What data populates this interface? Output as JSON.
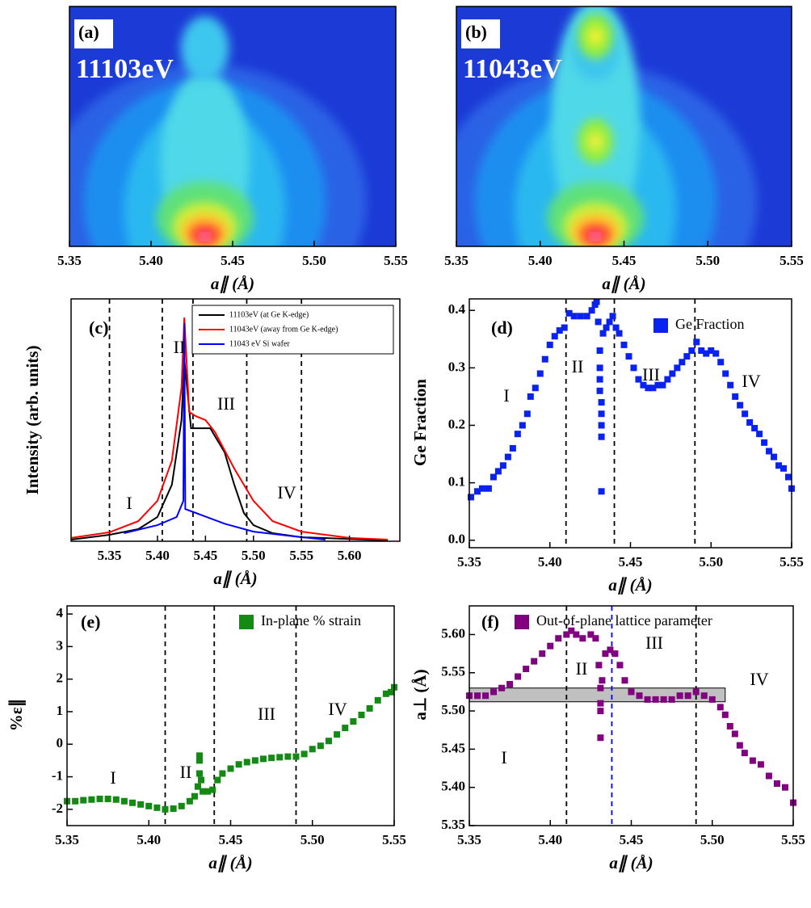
{
  "chart_data": [
    {
      "type": "image",
      "panel_label": "(a)",
      "annotation": "11103eV",
      "xlabel": "a∥ (Å)",
      "xlim": [
        5.35,
        5.55
      ],
      "xticks": [
        5.35,
        {
          "value": 5.4,
          "label": "5.40"
        },
        5.45,
        {
          "value": 5.5,
          "label": "5.50"
        },
        5.55
      ]
    },
    {
      "type": "image",
      "panel_label": "(b)",
      "annotation": "11043eV",
      "xlabel": "a∥ (Å)",
      "xlim": [
        5.35,
        5.55
      ],
      "xticks": [
        5.35,
        {
          "value": 5.4,
          "label": "5.40"
        },
        5.45,
        {
          "value": 5.5,
          "label": "5.50"
        },
        5.55
      ]
    },
    {
      "type": "line",
      "panel_label": "(c)",
      "xlabel": "a∥ (Å)",
      "ylabel": "Intensity (arb. units)",
      "log_y": true,
      "xlim": [
        5.31,
        5.6525
      ],
      "xticks": [
        5.35,
        {
          "value": 5.4,
          "label": "5.40"
        },
        5.45,
        {
          "value": 5.5,
          "label": "5.50"
        },
        5.55,
        {
          "value": 5.6,
          "label": "5.60"
        }
      ],
      "ylim": [
        1,
        100000
      ],
      "vlines": [
        {
          "x": 5.35,
          "color": "#000000"
        },
        {
          "x": 5.405,
          "color": "#000000"
        },
        {
          "x": 5.437,
          "color": "#000000"
        },
        {
          "x": 5.493,
          "color": "#000000"
        },
        {
          "x": 5.55,
          "color": "#000000"
        }
      ],
      "region_labels": [
        "I",
        "II",
        "III",
        "IV"
      ],
      "series": [
        {
          "name": "11103eV (at Ge K-edge)",
          "color": "#000000",
          "x": [
            5.31,
            5.35,
            5.38,
            5.4,
            5.415,
            5.425,
            5.428,
            5.435,
            5.455,
            5.47,
            5.48,
            5.49,
            5.5,
            5.52,
            5.55,
            5.64
          ],
          "values": [
            1.08,
            1.36,
            1.78,
            3.16,
            14.7,
            316,
            5623,
            215,
            215,
            68,
            14.7,
            3.83,
            2.15,
            1.47,
            1.21,
            1.04
          ]
        },
        {
          "name": "11043eV (away from Ge K-edge)",
          "color": "#ff0000",
          "x": [
            5.31,
            5.35,
            5.38,
            5.4,
            5.415,
            5.425,
            5.428,
            5.433,
            5.44,
            5.45,
            5.46,
            5.48,
            5.5,
            5.52,
            5.55,
            5.6,
            5.64
          ],
          "values": [
            1.17,
            1.53,
            2.6,
            6.8,
            46,
            1468,
            41000,
            464,
            380,
            316,
            178,
            31.6,
            6.8,
            2.6,
            1.58,
            1.17,
            1.08
          ]
        },
        {
          "name": "11043 eV Si wafer",
          "color": "#0000ff",
          "x": [
            5.365,
            5.4,
            5.42,
            5.427,
            5.428,
            5.429,
            5.44,
            5.47,
            5.5,
            5.55,
            5.575
          ],
          "values": [
            1.47,
            2.15,
            3.16,
            6.8,
            31600,
            4.6,
            3.83,
            2.3,
            1.58,
            1.21,
            1.08
          ]
        }
      ]
    },
    {
      "type": "scatter",
      "panel_label": "(d)",
      "xlabel": "a∥ (Å)",
      "ylabel": "Ge Fraction",
      "xlim": [
        5.35,
        5.55
      ],
      "xticks": [
        5.35,
        {
          "value": 5.4,
          "label": "5.40"
        },
        5.45,
        {
          "value": 5.5,
          "label": "5.50"
        },
        5.55
      ],
      "ylim": [
        -0.013,
        0.42
      ],
      "yticks": [
        {
          "value": 0,
          "label": "0.0"
        },
        0.1,
        0.2,
        0.3,
        0.4
      ],
      "vlines": [
        {
          "x": 5.41,
          "color": "#000000"
        },
        {
          "x": 5.44,
          "color": "#000000"
        },
        {
          "x": 5.49,
          "color": "#000000"
        }
      ],
      "region_labels": [
        "I",
        "II",
        "III",
        "IV"
      ],
      "series": [
        {
          "name": "Ge Fraction",
          "color": "#0a22f0",
          "x": [
            5.351,
            5.355,
            5.358,
            5.362,
            5.365,
            5.368,
            5.371,
            5.374,
            5.377,
            5.38,
            5.383,
            5.386,
            5.388,
            5.391,
            5.394,
            5.397,
            5.4,
            5.403,
            5.406,
            5.409,
            5.412,
            5.415,
            5.419,
            5.423,
            5.426,
            5.428,
            5.429,
            5.43,
            5.431,
            5.431,
            5.431,
            5.431,
            5.432,
            5.432,
            5.432,
            5.432,
            5.432,
            5.433,
            5.435,
            5.437,
            5.439,
            5.441,
            5.443,
            5.446,
            5.449,
            5.452,
            5.455,
            5.458,
            5.461,
            5.464,
            5.467,
            5.47,
            5.473,
            5.476,
            5.479,
            5.482,
            5.485,
            5.488,
            5.491,
            5.494,
            5.497,
            5.5,
            5.503,
            5.506,
            5.509,
            5.512,
            5.515,
            5.518,
            5.521,
            5.524,
            5.527,
            5.53,
            5.533,
            5.536,
            5.539,
            5.542,
            5.545,
            5.548,
            5.55
          ],
          "values": [
            0.075,
            0.085,
            0.09,
            0.09,
            0.11,
            0.12,
            0.13,
            0.145,
            0.16,
            0.185,
            0.2,
            0.22,
            0.25,
            0.265,
            0.29,
            0.315,
            0.34,
            0.355,
            0.365,
            0.37,
            0.395,
            0.39,
            0.39,
            0.39,
            0.4,
            0.41,
            0.415,
            0.38,
            0.33,
            0.3,
            0.28,
            0.26,
            0.24,
            0.22,
            0.2,
            0.18,
            0.085,
            0.36,
            0.37,
            0.38,
            0.39,
            0.37,
            0.36,
            0.34,
            0.32,
            0.3,
            0.28,
            0.27,
            0.265,
            0.265,
            0.27,
            0.27,
            0.28,
            0.29,
            0.3,
            0.31,
            0.32,
            0.33,
            0.345,
            0.33,
            0.325,
            0.33,
            0.325,
            0.31,
            0.29,
            0.27,
            0.25,
            0.235,
            0.22,
            0.205,
            0.195,
            0.185,
            0.17,
            0.155,
            0.145,
            0.13,
            0.125,
            0.11,
            0.09
          ]
        }
      ]
    },
    {
      "type": "scatter",
      "panel_label": "(e)",
      "xlabel": "a∥ (Å)",
      "ylabel": "%ε∥",
      "xlim": [
        5.35,
        5.55
      ],
      "xticks": [
        5.35,
        {
          "value": 5.4,
          "label": "5.40"
        },
        5.45,
        {
          "value": 5.5,
          "label": "5.50"
        },
        5.55
      ],
      "ylim": [
        -2.5,
        4.25
      ],
      "yticks": [
        -2,
        -1,
        0,
        1,
        2,
        3,
        4
      ],
      "vlines": [
        {
          "x": 5.41,
          "color": "#000000"
        },
        {
          "x": 5.44,
          "color": "#000000"
        },
        {
          "x": 5.49,
          "color": "#000000"
        }
      ],
      "region_labels": [
        "I",
        "II",
        "III",
        "IV"
      ],
      "series": [
        {
          "name": "In-plane % strain",
          "color": "#138a13",
          "x": [
            5.35,
            5.355,
            5.36,
            5.365,
            5.37,
            5.375,
            5.38,
            5.385,
            5.39,
            5.395,
            5.4,
            5.405,
            5.41,
            5.415,
            5.42,
            5.425,
            5.428,
            5.43,
            5.431,
            5.431,
            5.431,
            5.432,
            5.433,
            5.436,
            5.439,
            5.442,
            5.445,
            5.45,
            5.455,
            5.46,
            5.465,
            5.47,
            5.475,
            5.48,
            5.485,
            5.49,
            5.495,
            5.5,
            5.505,
            5.51,
            5.515,
            5.52,
            5.525,
            5.53,
            5.535,
            5.54,
            5.545,
            5.548,
            5.55
          ],
          "values": [
            -1.75,
            -1.75,
            -1.72,
            -1.7,
            -1.68,
            -1.68,
            -1.7,
            -1.75,
            -1.8,
            -1.85,
            -1.9,
            -1.95,
            -2.0,
            -1.98,
            -1.9,
            -1.75,
            -1.6,
            -1.3,
            -0.9,
            -0.5,
            -0.35,
            -1.1,
            -1.45,
            -1.45,
            -1.4,
            -1.1,
            -0.9,
            -0.75,
            -0.62,
            -0.55,
            -0.5,
            -0.45,
            -0.42,
            -0.4,
            -0.38,
            -0.38,
            -0.3,
            -0.15,
            -0.05,
            0.1,
            0.3,
            0.5,
            0.7,
            0.9,
            1.1,
            1.35,
            1.55,
            1.6,
            1.75
          ]
        }
      ]
    },
    {
      "type": "scatter",
      "panel_label": "(f)",
      "xlabel": "a∥ (Å)",
      "ylabel": "a⊥ (Å)",
      "xlim": [
        5.35,
        5.55
      ],
      "xticks": [
        5.35,
        {
          "value": 5.4,
          "label": "5.40"
        },
        5.45,
        {
          "value": 5.5,
          "label": "5.50"
        },
        5.55
      ],
      "ylim": [
        5.35,
        5.6375
      ],
      "yticks": [
        5.35,
        {
          "value": 5.4,
          "label": "5.40"
        },
        5.45,
        {
          "value": 5.5,
          "label": "5.50"
        },
        5.55,
        {
          "value": 5.6,
          "label": "5.60"
        }
      ],
      "band": {
        "xlim": [
          5.35,
          5.508
        ],
        "ylim": [
          5.512,
          5.53
        ],
        "color": "#c0c0c0"
      },
      "vlines": [
        {
          "x": 5.41,
          "color": "#000000"
        },
        {
          "x": 5.438,
          "color": "#0000ff"
        },
        {
          "x": 5.49,
          "color": "#000000"
        }
      ],
      "region_labels": [
        "I",
        "II",
        "III",
        "IV"
      ],
      "series": [
        {
          "name": "Out-of-plane lattice parameter",
          "color": "#800080",
          "x": [
            5.35,
            5.355,
            5.36,
            5.365,
            5.37,
            5.375,
            5.38,
            5.385,
            5.39,
            5.395,
            5.4,
            5.405,
            5.41,
            5.413,
            5.416,
            5.42,
            5.425,
            5.428,
            5.43,
            5.431,
            5.431,
            5.431,
            5.431,
            5.432,
            5.434,
            5.437,
            5.44,
            5.443,
            5.446,
            5.45,
            5.455,
            5.46,
            5.465,
            5.47,
            5.475,
            5.48,
            5.485,
            5.49,
            5.495,
            5.5,
            5.505,
            5.508,
            5.511,
            5.514,
            5.517,
            5.52,
            5.525,
            5.53,
            5.535,
            5.54,
            5.545,
            5.55
          ],
          "values": [
            5.52,
            5.52,
            5.52,
            5.525,
            5.53,
            5.535,
            5.545,
            5.555,
            5.565,
            5.575,
            5.585,
            5.595,
            5.6,
            5.605,
            5.6,
            5.595,
            5.6,
            5.595,
            5.56,
            5.53,
            5.51,
            5.5,
            5.465,
            5.54,
            5.575,
            5.58,
            5.575,
            5.56,
            5.54,
            5.525,
            5.52,
            5.515,
            5.515,
            5.515,
            5.515,
            5.52,
            5.52,
            5.525,
            5.52,
            5.515,
            5.505,
            5.495,
            5.48,
            5.47,
            5.455,
            5.445,
            5.435,
            5.43,
            5.415,
            5.405,
            5.4,
            5.38
          ]
        }
      ]
    }
  ]
}
